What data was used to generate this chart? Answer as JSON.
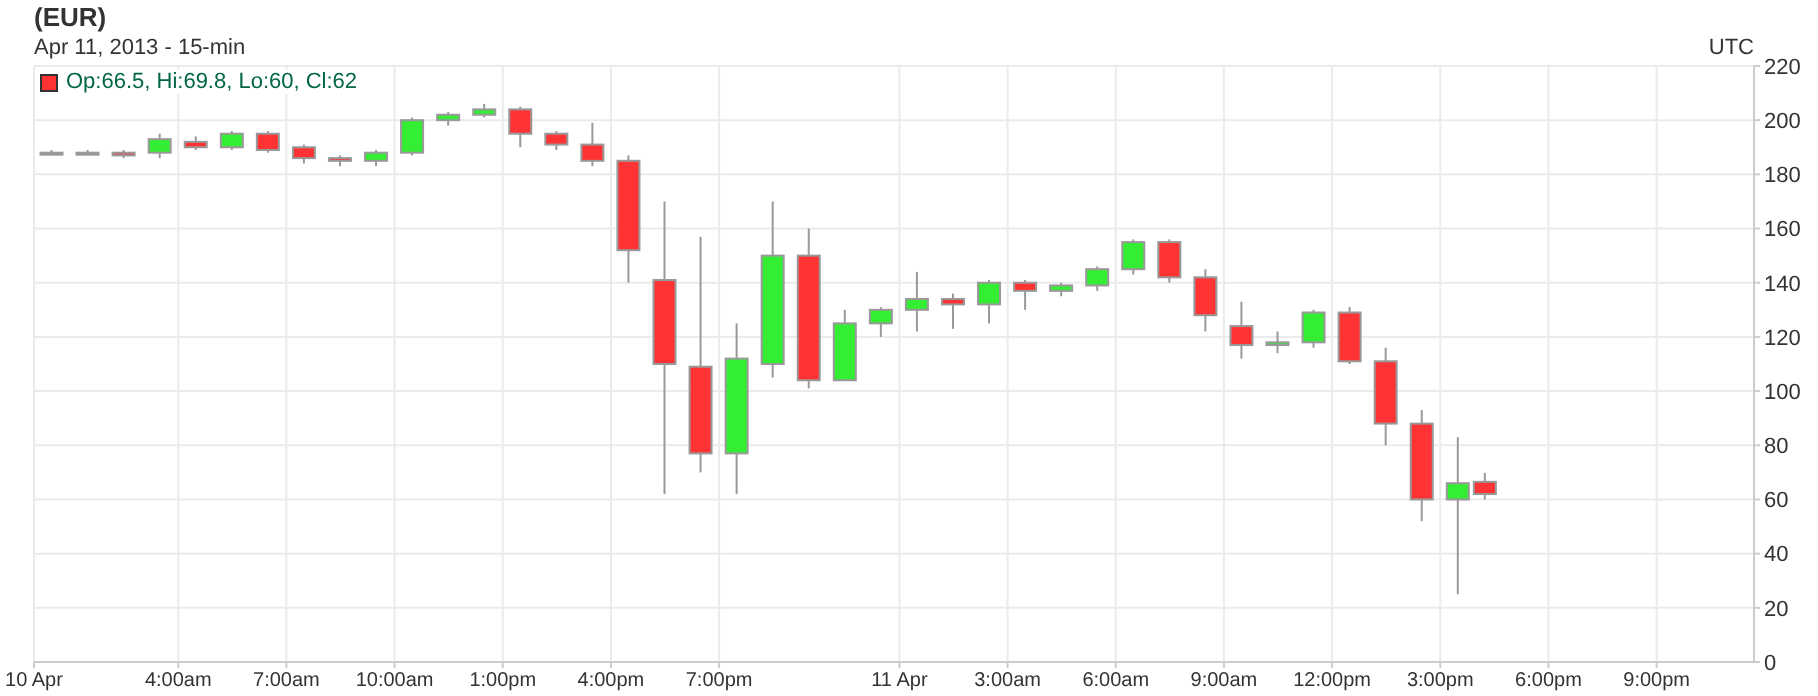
{
  "chart_data": {
    "type": "candlestick",
    "title": "(EUR)",
    "subtitle": "Apr 11, 2013 - 15-min",
    "annotations": [
      "UTC",
      "Op:66.5, Hi:69.8, Lo:60, Cl:62"
    ],
    "x": [
      "2013-04-10T00:30",
      "2013-04-10T01:30",
      "2013-04-10T02:30",
      "2013-04-10T03:30",
      "2013-04-10T04:30",
      "2013-04-10T05:30",
      "2013-04-10T06:30",
      "2013-04-10T07:30",
      "2013-04-10T08:30",
      "2013-04-10T09:30",
      "2013-04-10T10:30",
      "2013-04-10T11:30",
      "2013-04-10T12:30",
      "2013-04-10T13:30",
      "2013-04-10T14:30",
      "2013-04-10T15:30",
      "2013-04-10T16:30",
      "2013-04-10T17:30",
      "2013-04-10T18:30",
      "2013-04-10T19:30",
      "2013-04-10T20:30",
      "2013-04-10T21:30",
      "2013-04-10T22:30",
      "2013-04-10T23:30",
      "2013-04-11T00:30",
      "2013-04-11T01:30",
      "2013-04-11T02:30",
      "2013-04-11T03:30",
      "2013-04-11T04:30",
      "2013-04-11T05:30",
      "2013-04-11T06:30",
      "2013-04-11T07:30",
      "2013-04-11T08:30",
      "2013-04-11T09:30",
      "2013-04-11T10:30",
      "2013-04-11T11:30",
      "2013-04-11T12:30",
      "2013-04-11T13:30",
      "2013-04-11T14:30",
      "2013-04-11T15:30",
      "2013-04-11T16:15"
    ],
    "ohlc": [
      [
        188,
        189,
        187,
        188
      ],
      [
        188,
        189,
        187,
        188
      ],
      [
        188,
        189,
        186,
        187
      ],
      [
        188,
        195,
        186,
        193
      ],
      [
        192,
        194,
        189,
        190
      ],
      [
        190,
        196,
        189,
        195
      ],
      [
        195,
        196,
        188,
        189
      ],
      [
        190,
        191,
        184,
        186
      ],
      [
        186,
        187,
        183,
        185
      ],
      [
        185,
        189,
        183,
        188
      ],
      [
        188,
        201,
        187,
        200
      ],
      [
        200,
        203,
        198,
        202
      ],
      [
        202,
        206,
        201,
        204
      ],
      [
        204,
        205,
        190,
        195
      ],
      [
        195,
        196,
        189,
        191
      ],
      [
        191,
        199,
        183,
        185
      ],
      [
        185,
        187,
        140,
        152
      ],
      [
        141,
        170,
        62,
        110
      ],
      [
        109,
        157,
        70,
        77
      ],
      [
        77,
        125,
        62,
        112
      ],
      [
        110,
        170,
        105,
        150
      ],
      [
        150,
        160,
        101,
        104
      ],
      [
        104,
        130,
        104,
        125
      ],
      [
        125,
        131,
        120,
        130
      ],
      [
        130,
        144,
        122,
        134
      ],
      [
        134,
        136,
        123,
        132
      ],
      [
        132,
        141,
        125,
        140
      ],
      [
        140,
        141,
        130,
        137
      ],
      [
        137,
        140,
        135,
        139
      ],
      [
        139,
        146,
        137,
        145
      ],
      [
        145,
        156,
        143,
        155
      ],
      [
        155,
        156,
        140,
        142
      ],
      [
        142,
        145,
        122,
        128
      ],
      [
        124,
        133,
        112,
        117
      ],
      [
        117,
        122,
        114,
        118
      ],
      [
        118,
        130,
        116,
        129
      ],
      [
        129,
        131,
        110,
        111
      ],
      [
        111,
        116,
        80,
        88
      ],
      [
        88,
        93,
        52,
        60
      ],
      [
        60,
        83,
        25,
        66
      ],
      [
        66.5,
        69.8,
        60,
        62
      ]
    ],
    "colors": [
      "#ff3333",
      "#ff3333",
      "#ff3333",
      "#33ee33",
      "#ff3333",
      "#33ee33",
      "#ff3333",
      "#ff3333",
      "#ff3333",
      "#33ee33",
      "#33ee33",
      "#33ee33",
      "#33ee33",
      "#ff3333",
      "#ff3333",
      "#ff3333",
      "#ff3333",
      "#ff3333",
      "#ff3333",
      "#33ee33",
      "#33ee33",
      "#ff3333",
      "#33ee33",
      "#33ee33",
      "#33ee33",
      "#ff3333",
      "#33ee33",
      "#ff3333",
      "#33ee33",
      "#33ee33",
      "#33ee33",
      "#ff3333",
      "#ff3333",
      "#ff3333",
      "#33ee33",
      "#33ee33",
      "#ff3333",
      "#ff3333",
      "#ff3333",
      "#33ee33",
      "#ff3333"
    ],
    "xlim": [
      "2013-04-10T00:00",
      "2013-04-11T23:42"
    ],
    "xticks": [
      {
        "value": "2013-04-10T00:00",
        "label": "10 Apr"
      },
      {
        "value": "2013-04-10T04:00",
        "label": "4:00am"
      },
      {
        "value": "2013-04-10T07:00",
        "label": "7:00am"
      },
      {
        "value": "2013-04-10T10:00",
        "label": "10:00am"
      },
      {
        "value": "2013-04-10T13:00",
        "label": "1:00pm"
      },
      {
        "value": "2013-04-10T16:00",
        "label": "4:00pm"
      },
      {
        "value": "2013-04-10T19:00",
        "label": "7:00pm"
      },
      {
        "value": "2013-04-11T00:00",
        "label": "11 Apr"
      },
      {
        "value": "2013-04-11T03:00",
        "label": "3:00am"
      },
      {
        "value": "2013-04-11T06:00",
        "label": "6:00am"
      },
      {
        "value": "2013-04-11T09:00",
        "label": "9:00am"
      },
      {
        "value": "2013-04-11T12:00",
        "label": "12:00pm"
      },
      {
        "value": "2013-04-11T15:00",
        "label": "3:00pm"
      },
      {
        "value": "2013-04-11T18:00",
        "label": "6:00pm"
      },
      {
        "value": "2013-04-11T21:00",
        "label": "9:00pm"
      }
    ],
    "ylim": [
      0,
      220
    ],
    "yticks": [
      0,
      20,
      40,
      60,
      80,
      100,
      120,
      140,
      160,
      180,
      200,
      220
    ],
    "grid": true
  }
}
